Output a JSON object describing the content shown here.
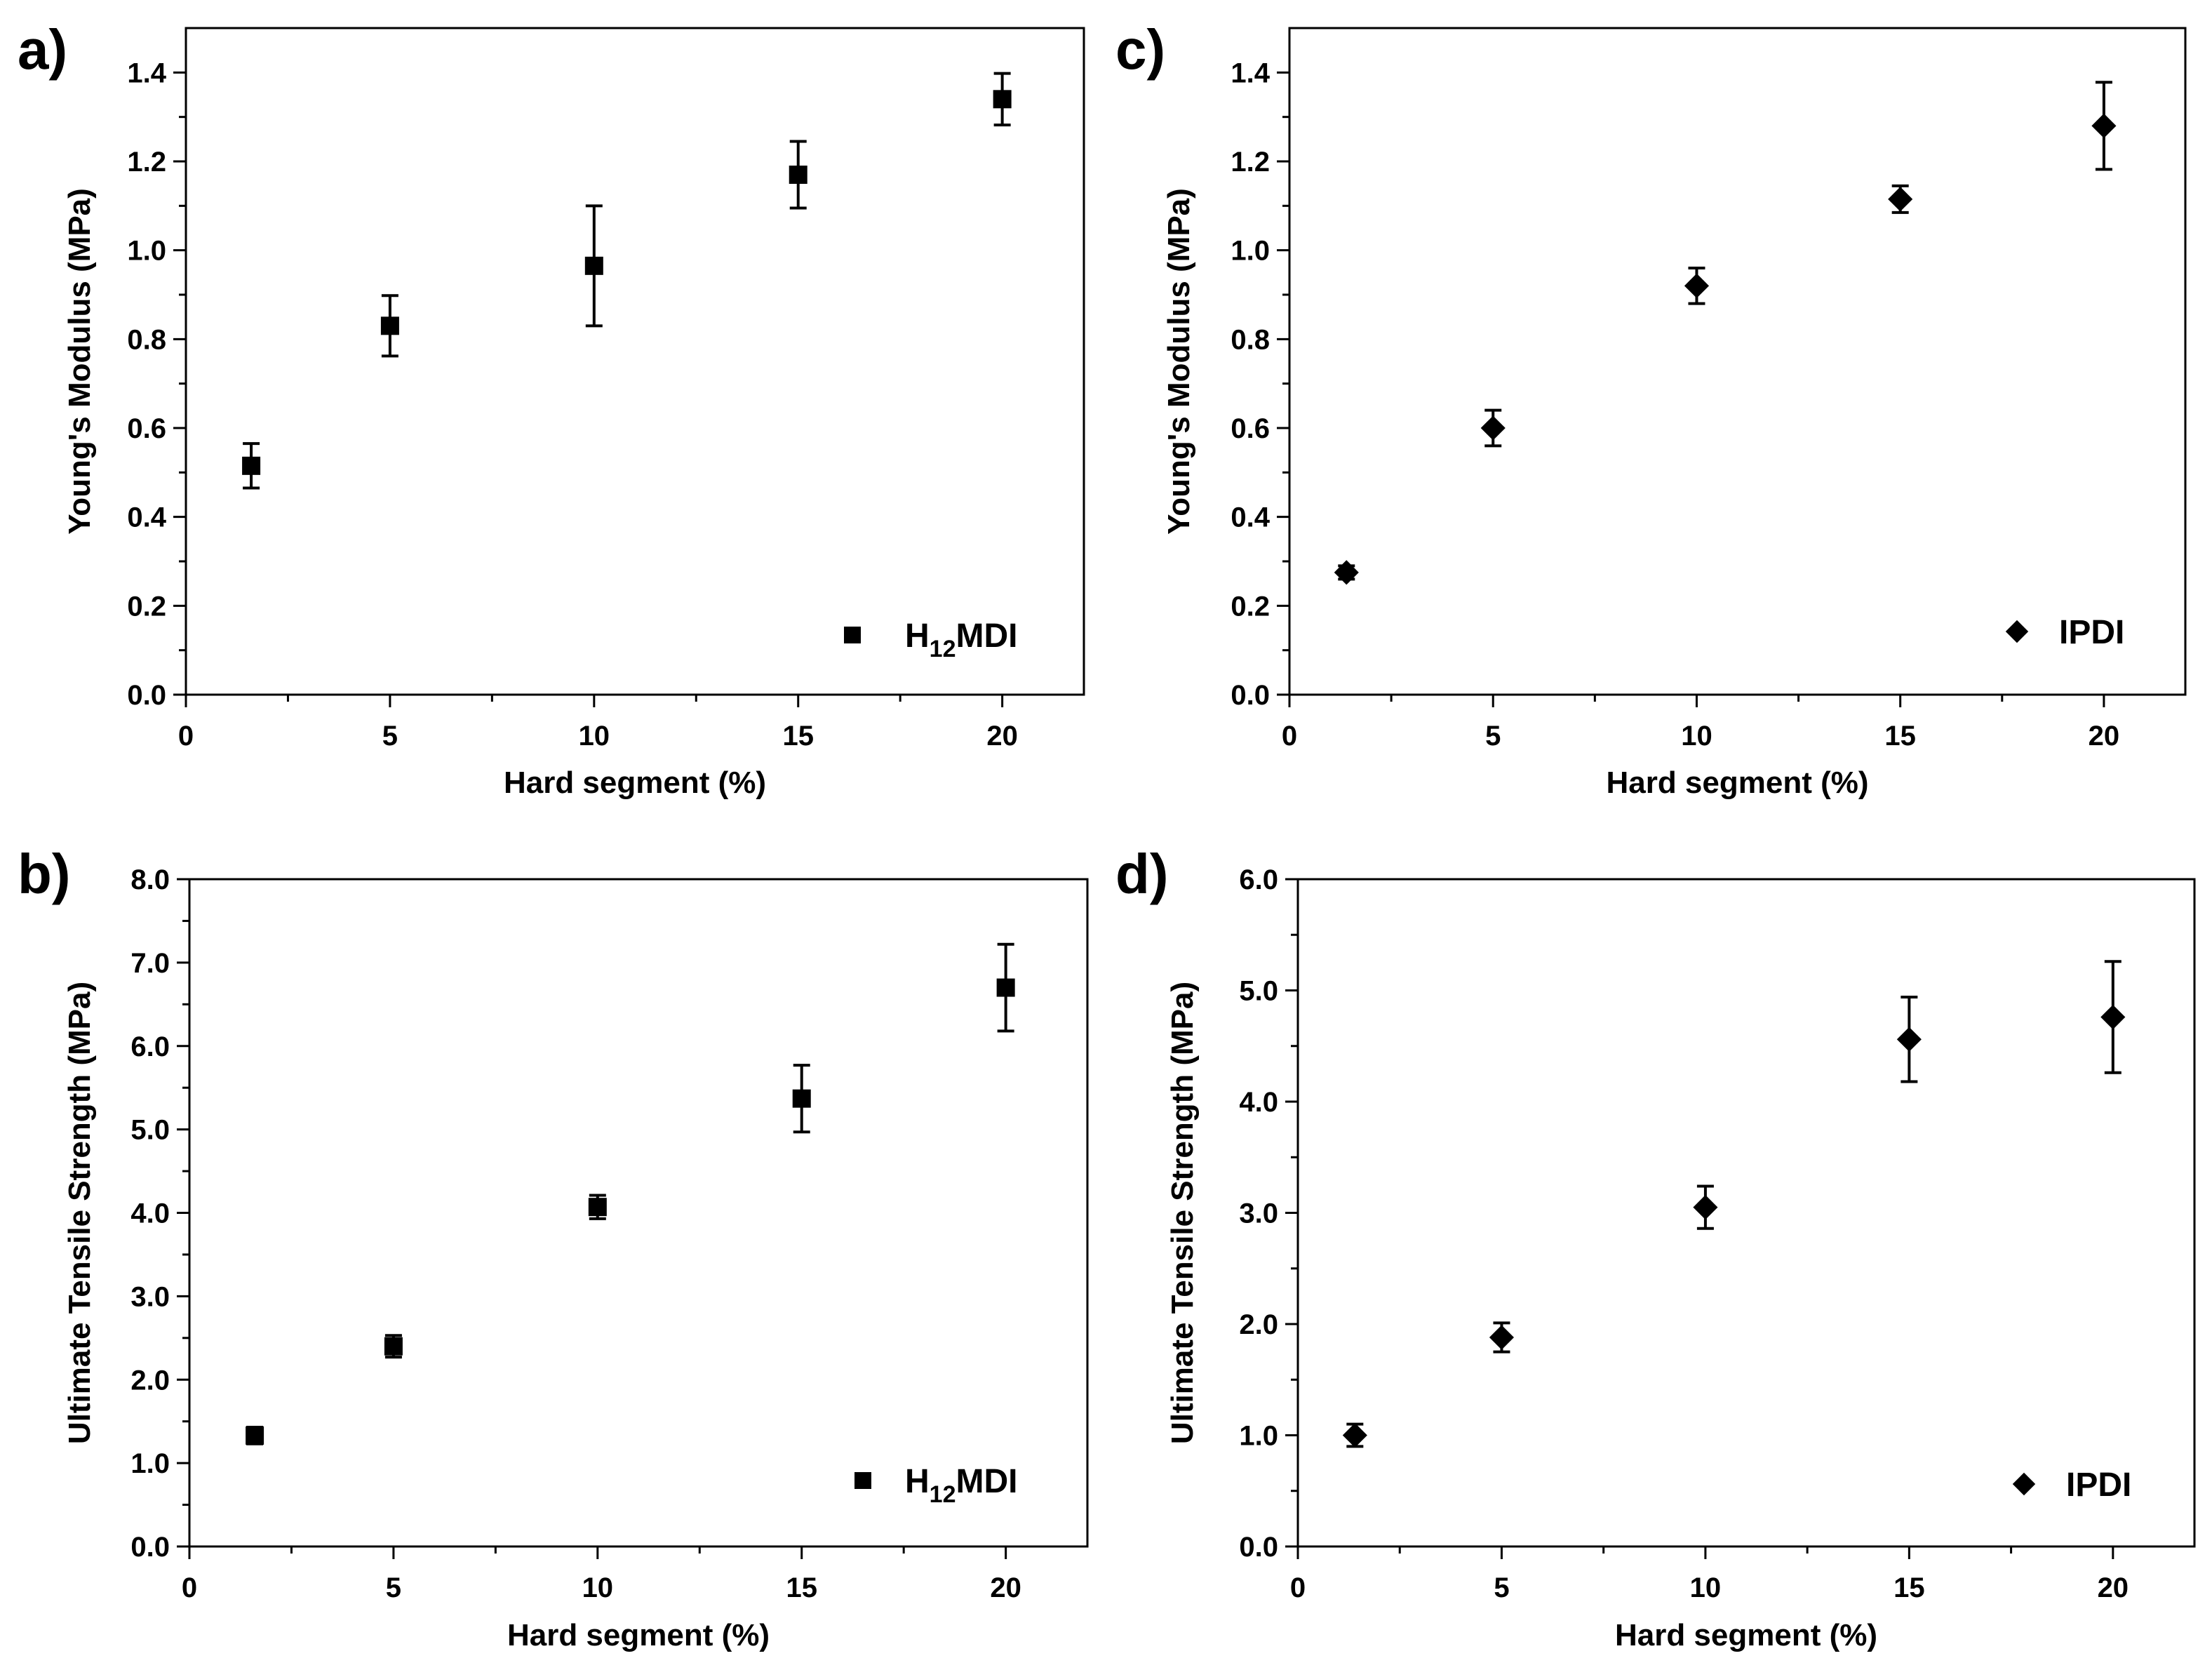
{
  "chart_data": [
    {
      "panel": "a)",
      "type": "scatter",
      "marker": "square",
      "xlabel": "Hard segment (%)",
      "ylabel": "Young's Modulus (MPa)",
      "xlim": [
        0,
        22
      ],
      "ylim": [
        0,
        1.5
      ],
      "xticks": [
        0,
        5,
        10,
        15,
        20
      ],
      "xtick_labels": [
        "0",
        "5",
        "10",
        "15",
        "20"
      ],
      "yticks": [
        0,
        0.2,
        0.4,
        0.6,
        0.8,
        1.0,
        1.2,
        1.4
      ],
      "ytick_labels": [
        "0.0",
        "0.2",
        "0.4",
        "0.6",
        "0.8",
        "1.0",
        "1.2",
        "1.4"
      ],
      "legend": {
        "main": "H",
        "sub": "12",
        "rest": "MDI",
        "position": "bottom-right"
      },
      "series": [
        {
          "name": "H12MDI",
          "x": [
            1.6,
            5,
            10,
            15,
            20
          ],
          "y": [
            0.515,
            0.83,
            0.965,
            1.17,
            1.34
          ],
          "err": [
            0.05,
            0.068,
            0.135,
            0.075,
            0.058
          ]
        }
      ]
    },
    {
      "panel": "b)",
      "type": "scatter",
      "marker": "square",
      "xlabel": "Hard segment (%)",
      "ylabel": "Ultimate Tensile Strength (MPa)",
      "xlim": [
        0,
        22
      ],
      "ylim": [
        0,
        8
      ],
      "xticks": [
        0,
        5,
        10,
        15,
        20
      ],
      "xtick_labels": [
        "0",
        "5",
        "10",
        "15",
        "20"
      ],
      "yticks": [
        0,
        1,
        2,
        3,
        4,
        5,
        6,
        7,
        8
      ],
      "ytick_labels": [
        "0.0",
        "1.0",
        "2.0",
        "3.0",
        "4.0",
        "5.0",
        "6.0",
        "7.0",
        "8.0"
      ],
      "legend": {
        "main": "H",
        "sub": "12",
        "rest": "MDI",
        "position": "bottom-right"
      },
      "series": [
        {
          "name": "H12MDI",
          "x": [
            1.6,
            5,
            10,
            15,
            20
          ],
          "y": [
            1.33,
            2.4,
            4.07,
            5.37,
            6.7
          ],
          "err": [
            0.1,
            0.13,
            0.14,
            0.4,
            0.52
          ]
        }
      ]
    },
    {
      "panel": "c)",
      "type": "scatter",
      "marker": "diamond",
      "xlabel": "Hard segment (%)",
      "ylabel": "Young's Modulus (MPa)",
      "xlim": [
        0,
        22
      ],
      "ylim": [
        0,
        1.5
      ],
      "xticks": [
        0,
        5,
        10,
        15,
        20
      ],
      "xtick_labels": [
        "0",
        "5",
        "10",
        "15",
        "20"
      ],
      "yticks": [
        0,
        0.2,
        0.4,
        0.6,
        0.8,
        1.0,
        1.2,
        1.4
      ],
      "ytick_labels": [
        "0.0",
        "0.2",
        "0.4",
        "0.6",
        "0.8",
        "1.0",
        "1.2",
        "1.4"
      ],
      "legend": {
        "main": "IPDI",
        "sub": "",
        "rest": "",
        "position": "bottom-right"
      },
      "series": [
        {
          "name": "IPDI",
          "x": [
            1.4,
            5,
            10,
            15,
            20
          ],
          "y": [
            0.275,
            0.6,
            0.92,
            1.115,
            1.28
          ],
          "err": [
            0.015,
            0.04,
            0.04,
            0.03,
            0.098
          ]
        }
      ]
    },
    {
      "panel": "d)",
      "type": "scatter",
      "marker": "diamond",
      "xlabel": "Hard segment (%)",
      "ylabel": "Ultimate Tensile Strength (MPa)",
      "xlim": [
        0,
        22
      ],
      "ylim": [
        0,
        6
      ],
      "xticks": [
        0,
        5,
        10,
        15,
        20
      ],
      "xtick_labels": [
        "0",
        "5",
        "10",
        "15",
        "20"
      ],
      "yticks": [
        0,
        1,
        2,
        3,
        4,
        5,
        6
      ],
      "ytick_labels": [
        "0.0",
        "1.0",
        "2.0",
        "3.0",
        "4.0",
        "5.0",
        "6.0"
      ],
      "legend": {
        "main": "IPDI",
        "sub": "",
        "rest": "",
        "position": "bottom-right"
      },
      "series": [
        {
          "name": "IPDI",
          "x": [
            1.4,
            5,
            10,
            15,
            20
          ],
          "y": [
            1.0,
            1.88,
            3.05,
            4.56,
            4.76
          ],
          "err": [
            0.1,
            0.13,
            0.19,
            0.38,
            0.5
          ]
        }
      ]
    }
  ]
}
